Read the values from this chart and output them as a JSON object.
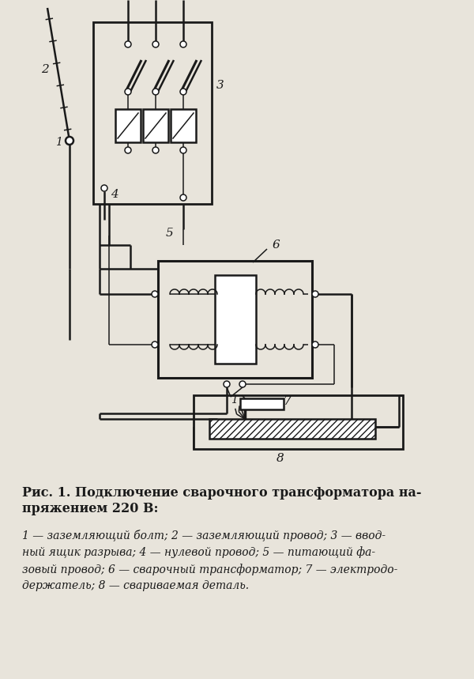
{
  "bg_color": "#e8e4db",
  "line_color": "#1a1a1a",
  "title_bold": "Рис. 1. Подключение сварочного трансформатора на-\nпряжением 220 В:",
  "caption_italic": "1 — заземляющий болт; 2 — заземляющий провод; 3 — ввод-\nный ящик разрыва; 4 — нулевой провод; 5 — питающий фа-\nзовый провод; 6 — сварочный трансформатор; 7 — электродо-\nдержатель; 8 — свариваемая деталь.",
  "lw": 1.8,
  "lw2": 2.2,
  "lw_thin": 1.1
}
